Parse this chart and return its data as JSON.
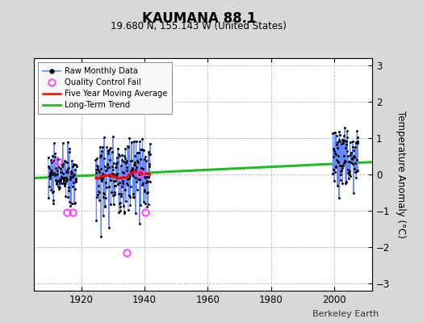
{
  "title": "KAUMANA 88.1",
  "subtitle": "19.680 N, 155.143 W (United States)",
  "ylabel": "Temperature Anomaly (°C)",
  "credit": "Berkeley Earth",
  "xlim": [
    1905,
    2012
  ],
  "ylim": [
    -3.2,
    3.2
  ],
  "yticks": [
    -3,
    -2,
    -1,
    0,
    1,
    2,
    3
  ],
  "xticks": [
    1920,
    1940,
    1960,
    1980,
    2000
  ],
  "background_color": "#d8d8d8",
  "plot_bg_color": "#ffffff",
  "grid_color": "#bbbbbb",
  "trend_x": [
    1905,
    2012
  ],
  "trend_y": [
    -0.1,
    0.34
  ],
  "cluster1": {
    "x_start": 1909.5,
    "x_end": 1918.5,
    "mean": -0.05,
    "std": 0.38,
    "seed": 10
  },
  "cluster2": {
    "x_start": 1924.5,
    "x_end": 1941.8,
    "mean": -0.05,
    "std": 0.52,
    "seed": 20
  },
  "cluster3": {
    "x_start": 1999.5,
    "x_end": 2007.5,
    "mean": 0.52,
    "std": 0.4,
    "seed": 30
  },
  "qc_points": [
    [
      1912.8,
      0.35
    ],
    [
      1915.5,
      -1.05
    ],
    [
      1917.2,
      -1.05
    ],
    [
      1934.3,
      -2.15
    ],
    [
      1938.8,
      0.03
    ],
    [
      1940.2,
      -1.05
    ]
  ]
}
